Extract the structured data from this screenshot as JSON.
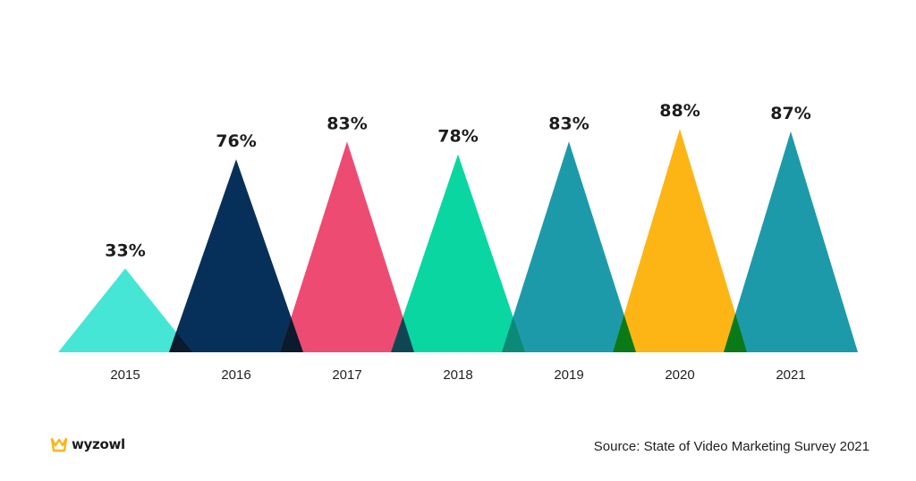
{
  "chart_data": {
    "type": "bar",
    "mark_shape": "triangle",
    "title": "",
    "xlabel": "",
    "ylabel": "",
    "ylim": [
      0,
      100
    ],
    "grid": false,
    "legend": "none",
    "categories": [
      "2015",
      "2016",
      "2017",
      "2018",
      "2019",
      "2020",
      "2021"
    ],
    "values": [
      33,
      76,
      83,
      78,
      83,
      88,
      87
    ],
    "value_labels": [
      "33%",
      "76%",
      "83%",
      "78%",
      "83%",
      "88%",
      "87%"
    ],
    "colors": [
      "#45e6d6",
      "#06305a",
      "#ee4b72",
      "#0ad6a2",
      "#1d9aaa",
      "#fdb515",
      "#1d9aaa"
    ],
    "overlap_colors": [
      "#0b1a2c",
      "#0b1a2c",
      "#104653",
      "#0b8a77",
      "#0a7a18",
      "#0a7a18"
    ]
  },
  "footer": {
    "logo_text": "wyzowl",
    "source": "Source: State of Video Marketing Survey 2021"
  }
}
